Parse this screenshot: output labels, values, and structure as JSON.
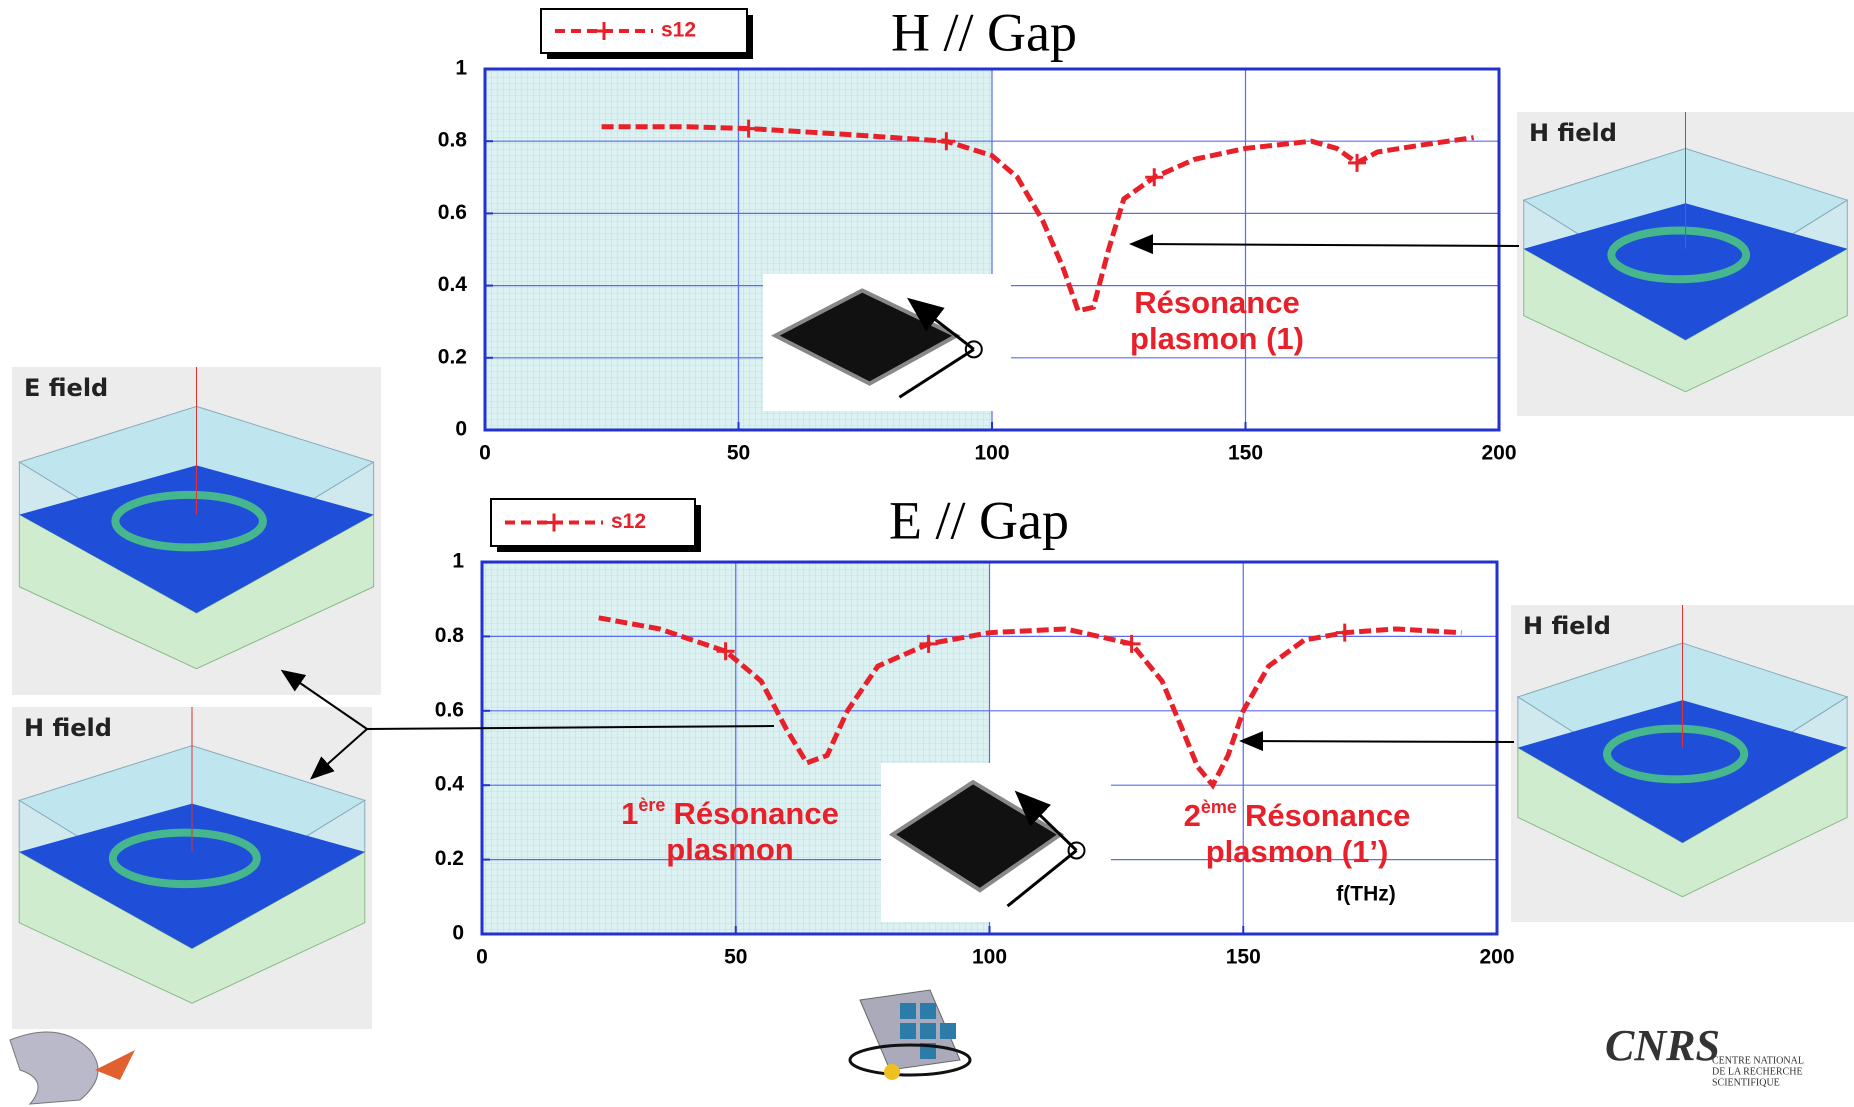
{
  "chart_data": [
    {
      "type": "line",
      "title": "H // Gap",
      "series": [
        {
          "name": "s12",
          "color": "#e8202a",
          "x": [
            23,
            40,
            52,
            70,
            91,
            100,
            105,
            110,
            114,
            117,
            120,
            123,
            126,
            132,
            140,
            150,
            163,
            168,
            172,
            176,
            185,
            195
          ],
          "values": [
            0.84,
            0.84,
            0.835,
            0.82,
            0.8,
            0.76,
            0.7,
            0.58,
            0.45,
            0.33,
            0.34,
            0.5,
            0.64,
            0.7,
            0.75,
            0.78,
            0.8,
            0.78,
            0.74,
            0.77,
            0.79,
            0.81
          ]
        }
      ],
      "xlim": [
        0,
        200
      ],
      "ylim": [
        0,
        1
      ],
      "xticks": [
        0,
        50,
        100,
        150,
        200
      ],
      "yticks": [
        0,
        0.2,
        0.4,
        0.6,
        0.8,
        1
      ],
      "grid": true,
      "annotation": {
        "text": "Résonance",
        "line2": "plasmon (1)"
      }
    },
    {
      "type": "line",
      "title": "E // Gap",
      "xlabel": "f(THz)",
      "series": [
        {
          "name": "s12",
          "color": "#e8202a",
          "x": [
            23,
            35,
            48,
            55,
            60,
            64,
            68,
            72,
            78,
            88,
            100,
            115,
            128,
            134,
            138,
            141,
            144,
            147,
            150,
            155,
            162,
            170,
            180,
            193
          ],
          "values": [
            0.85,
            0.82,
            0.76,
            0.68,
            0.55,
            0.46,
            0.48,
            0.6,
            0.72,
            0.78,
            0.81,
            0.82,
            0.78,
            0.68,
            0.55,
            0.45,
            0.4,
            0.48,
            0.6,
            0.72,
            0.79,
            0.81,
            0.82,
            0.81
          ]
        }
      ],
      "xlim": [
        0,
        200
      ],
      "ylim": [
        0,
        1
      ],
      "xticks": [
        0,
        50,
        100,
        150,
        200
      ],
      "yticks": [
        0,
        0.2,
        0.4,
        0.6,
        0.8,
        1
      ],
      "grid": true,
      "annotations": [
        {
          "number": "1",
          "sup": "ère",
          "text": "Résonance",
          "line2": "plasmon"
        },
        {
          "number": "2",
          "sup": "ème",
          "text": "Résonance",
          "line2": "plasmon (1’)"
        }
      ]
    }
  ],
  "fields": [
    "E field",
    "H field",
    "H field",
    "H field"
  ],
  "logo_text": [
    "CENTRE NATIONAL",
    "DE LA RECHERCHE",
    "SCIENTIFIQUE"
  ]
}
